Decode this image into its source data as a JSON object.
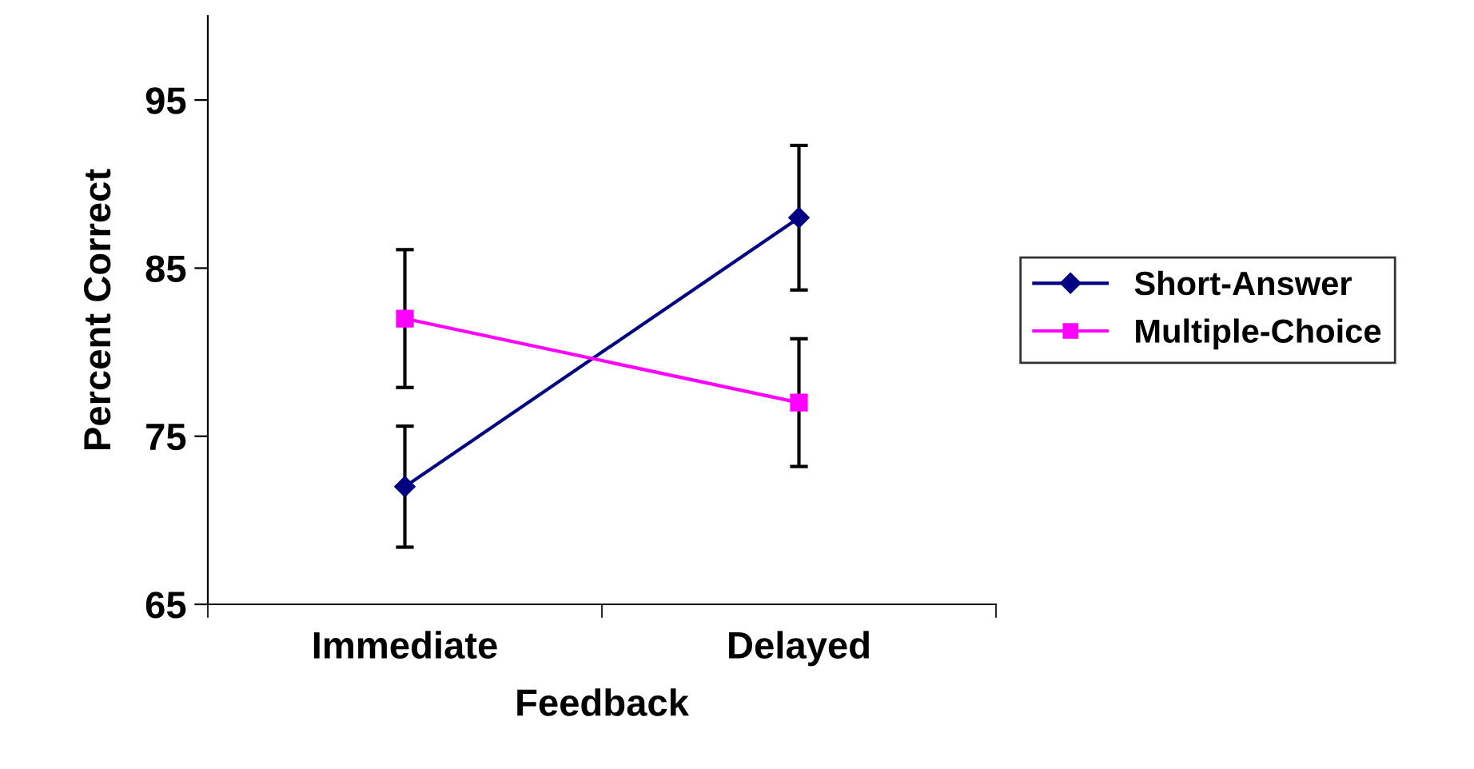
{
  "chart_data": {
    "type": "line",
    "xlabel": "Feedback",
    "ylabel": "Percent Correct",
    "categories": [
      "Immediate",
      "Delayed"
    ],
    "series": [
      {
        "name": "Short-Answer",
        "color": "#000080",
        "marker": "diamond",
        "values": [
          72,
          88
        ],
        "errors": [
          3.6,
          4.3
        ]
      },
      {
        "name": "Multiple-Choice",
        "color": "#ff00ff",
        "marker": "square",
        "values": [
          82,
          77
        ],
        "errors": [
          4.1,
          3.8
        ]
      }
    ],
    "ylim": [
      65,
      100
    ],
    "yticks": [
      65,
      75,
      85,
      95
    ],
    "grid": false,
    "legend": "right"
  }
}
